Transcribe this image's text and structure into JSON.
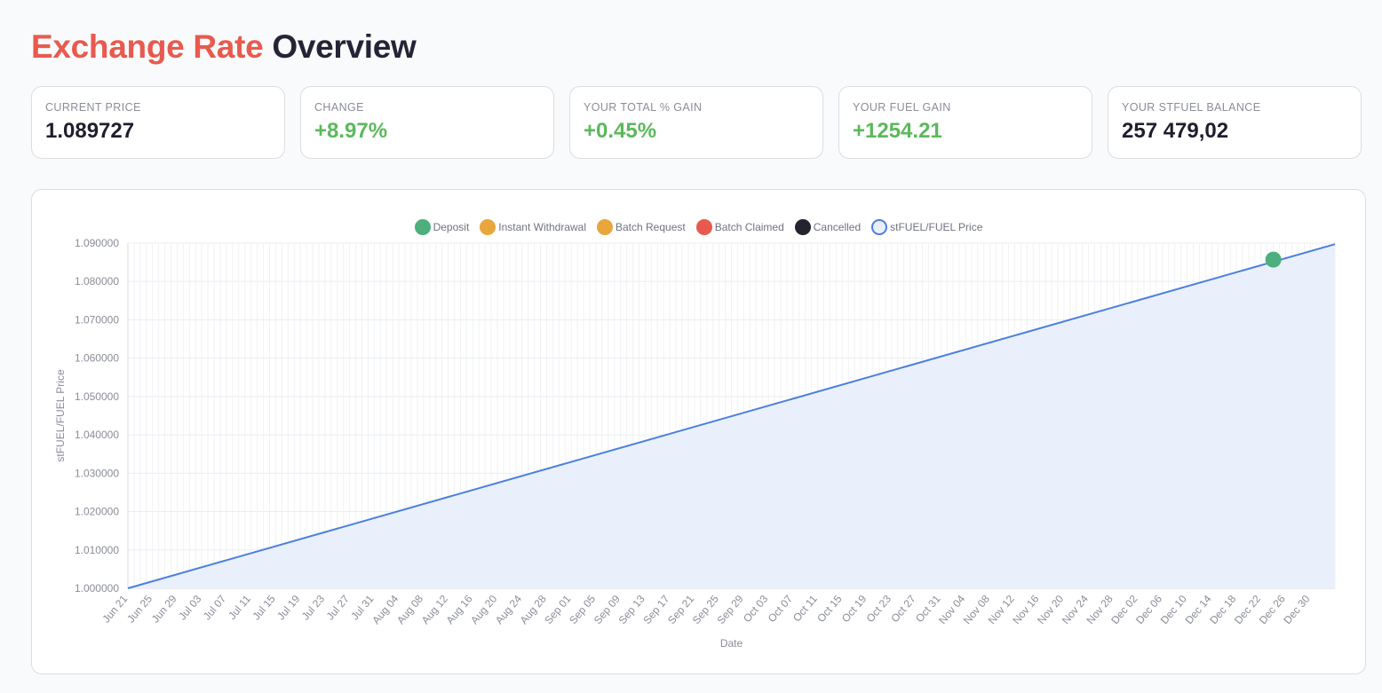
{
  "page": {
    "title_accent": "Exchange Rate",
    "title_rest": "Overview"
  },
  "stats": [
    {
      "label": "CURRENT PRICE",
      "value": "1.089727",
      "tone": "neutral"
    },
    {
      "label": "CHANGE",
      "value": "+8.97%",
      "tone": "positive"
    },
    {
      "label": "YOUR TOTAL % GAIN",
      "value": "+0.45%",
      "tone": "positive"
    },
    {
      "label": "YOUR FUEL GAIN",
      "value": "+1254.21",
      "tone": "positive"
    },
    {
      "label": "YOUR STFUEL BALANCE",
      "value": "257 479,02",
      "tone": "neutral"
    }
  ],
  "colors": {
    "accent": "#e85a4f",
    "positive": "#5cb85c",
    "line": "#4a7fe0",
    "area": "#eaf0fb"
  },
  "chart_data": {
    "type": "line",
    "xlabel": "Date",
    "ylabel": "stFUEL/FUEL Price",
    "x_range": [
      "2025-06-21",
      "2026-01-03"
    ],
    "ylim": [
      1.0,
      1.09
    ],
    "y_ticks": [
      "1.000000",
      "1.010000",
      "1.020000",
      "1.030000",
      "1.040000",
      "1.050000",
      "1.060000",
      "1.070000",
      "1.080000",
      "1.090000"
    ],
    "x_ticks": [
      "Jun 21",
      "Jun 25",
      "Jun 29",
      "Jul 03",
      "Jul 07",
      "Jul 11",
      "Jul 15",
      "Jul 19",
      "Jul 23",
      "Jul 27",
      "Jul 31",
      "Aug 04",
      "Aug 08",
      "Aug 12",
      "Aug 16",
      "Aug 20",
      "Aug 24",
      "Aug 28",
      "Sep 01",
      "Sep 05",
      "Sep 09",
      "Sep 13",
      "Sep 17",
      "Sep 21",
      "Sep 25",
      "Sep 29",
      "Oct 03",
      "Oct 07",
      "Oct 11",
      "Oct 15",
      "Oct 19",
      "Oct 23",
      "Oct 27",
      "Oct 31",
      "Nov 04",
      "Nov 08",
      "Nov 12",
      "Nov 16",
      "Nov 20",
      "Nov 24",
      "Nov 28",
      "Dec 02",
      "Dec 06",
      "Dec 10",
      "Dec 14",
      "Dec 18",
      "Dec 22",
      "Dec 26",
      "Dec 30"
    ],
    "grid": true,
    "legend_position": "top-center",
    "legend": [
      {
        "name": "Deposit",
        "color": "#4caf7d",
        "style": "filled"
      },
      {
        "name": "Instant Withdrawal",
        "color": "#e8a63c",
        "style": "filled"
      },
      {
        "name": "Batch Request",
        "color": "#e8a63c",
        "style": "filled"
      },
      {
        "name": "Batch Claimed",
        "color": "#e85a4f",
        "style": "filled"
      },
      {
        "name": "Cancelled",
        "color": "#24242f",
        "style": "filled"
      },
      {
        "name": "stFUEL/FUEL Price",
        "color": "#4a7fe0",
        "style": "outline"
      }
    ],
    "series": [
      {
        "name": "stFUEL/FUEL Price",
        "points": [
          {
            "x": "2025-06-21",
            "y": 1.0
          },
          {
            "x": "2026-01-03",
            "y": 1.089727
          }
        ]
      }
    ],
    "events": [
      {
        "type": "Deposit",
        "x": "2025-12-24",
        "y": 1.0857
      }
    ]
  }
}
